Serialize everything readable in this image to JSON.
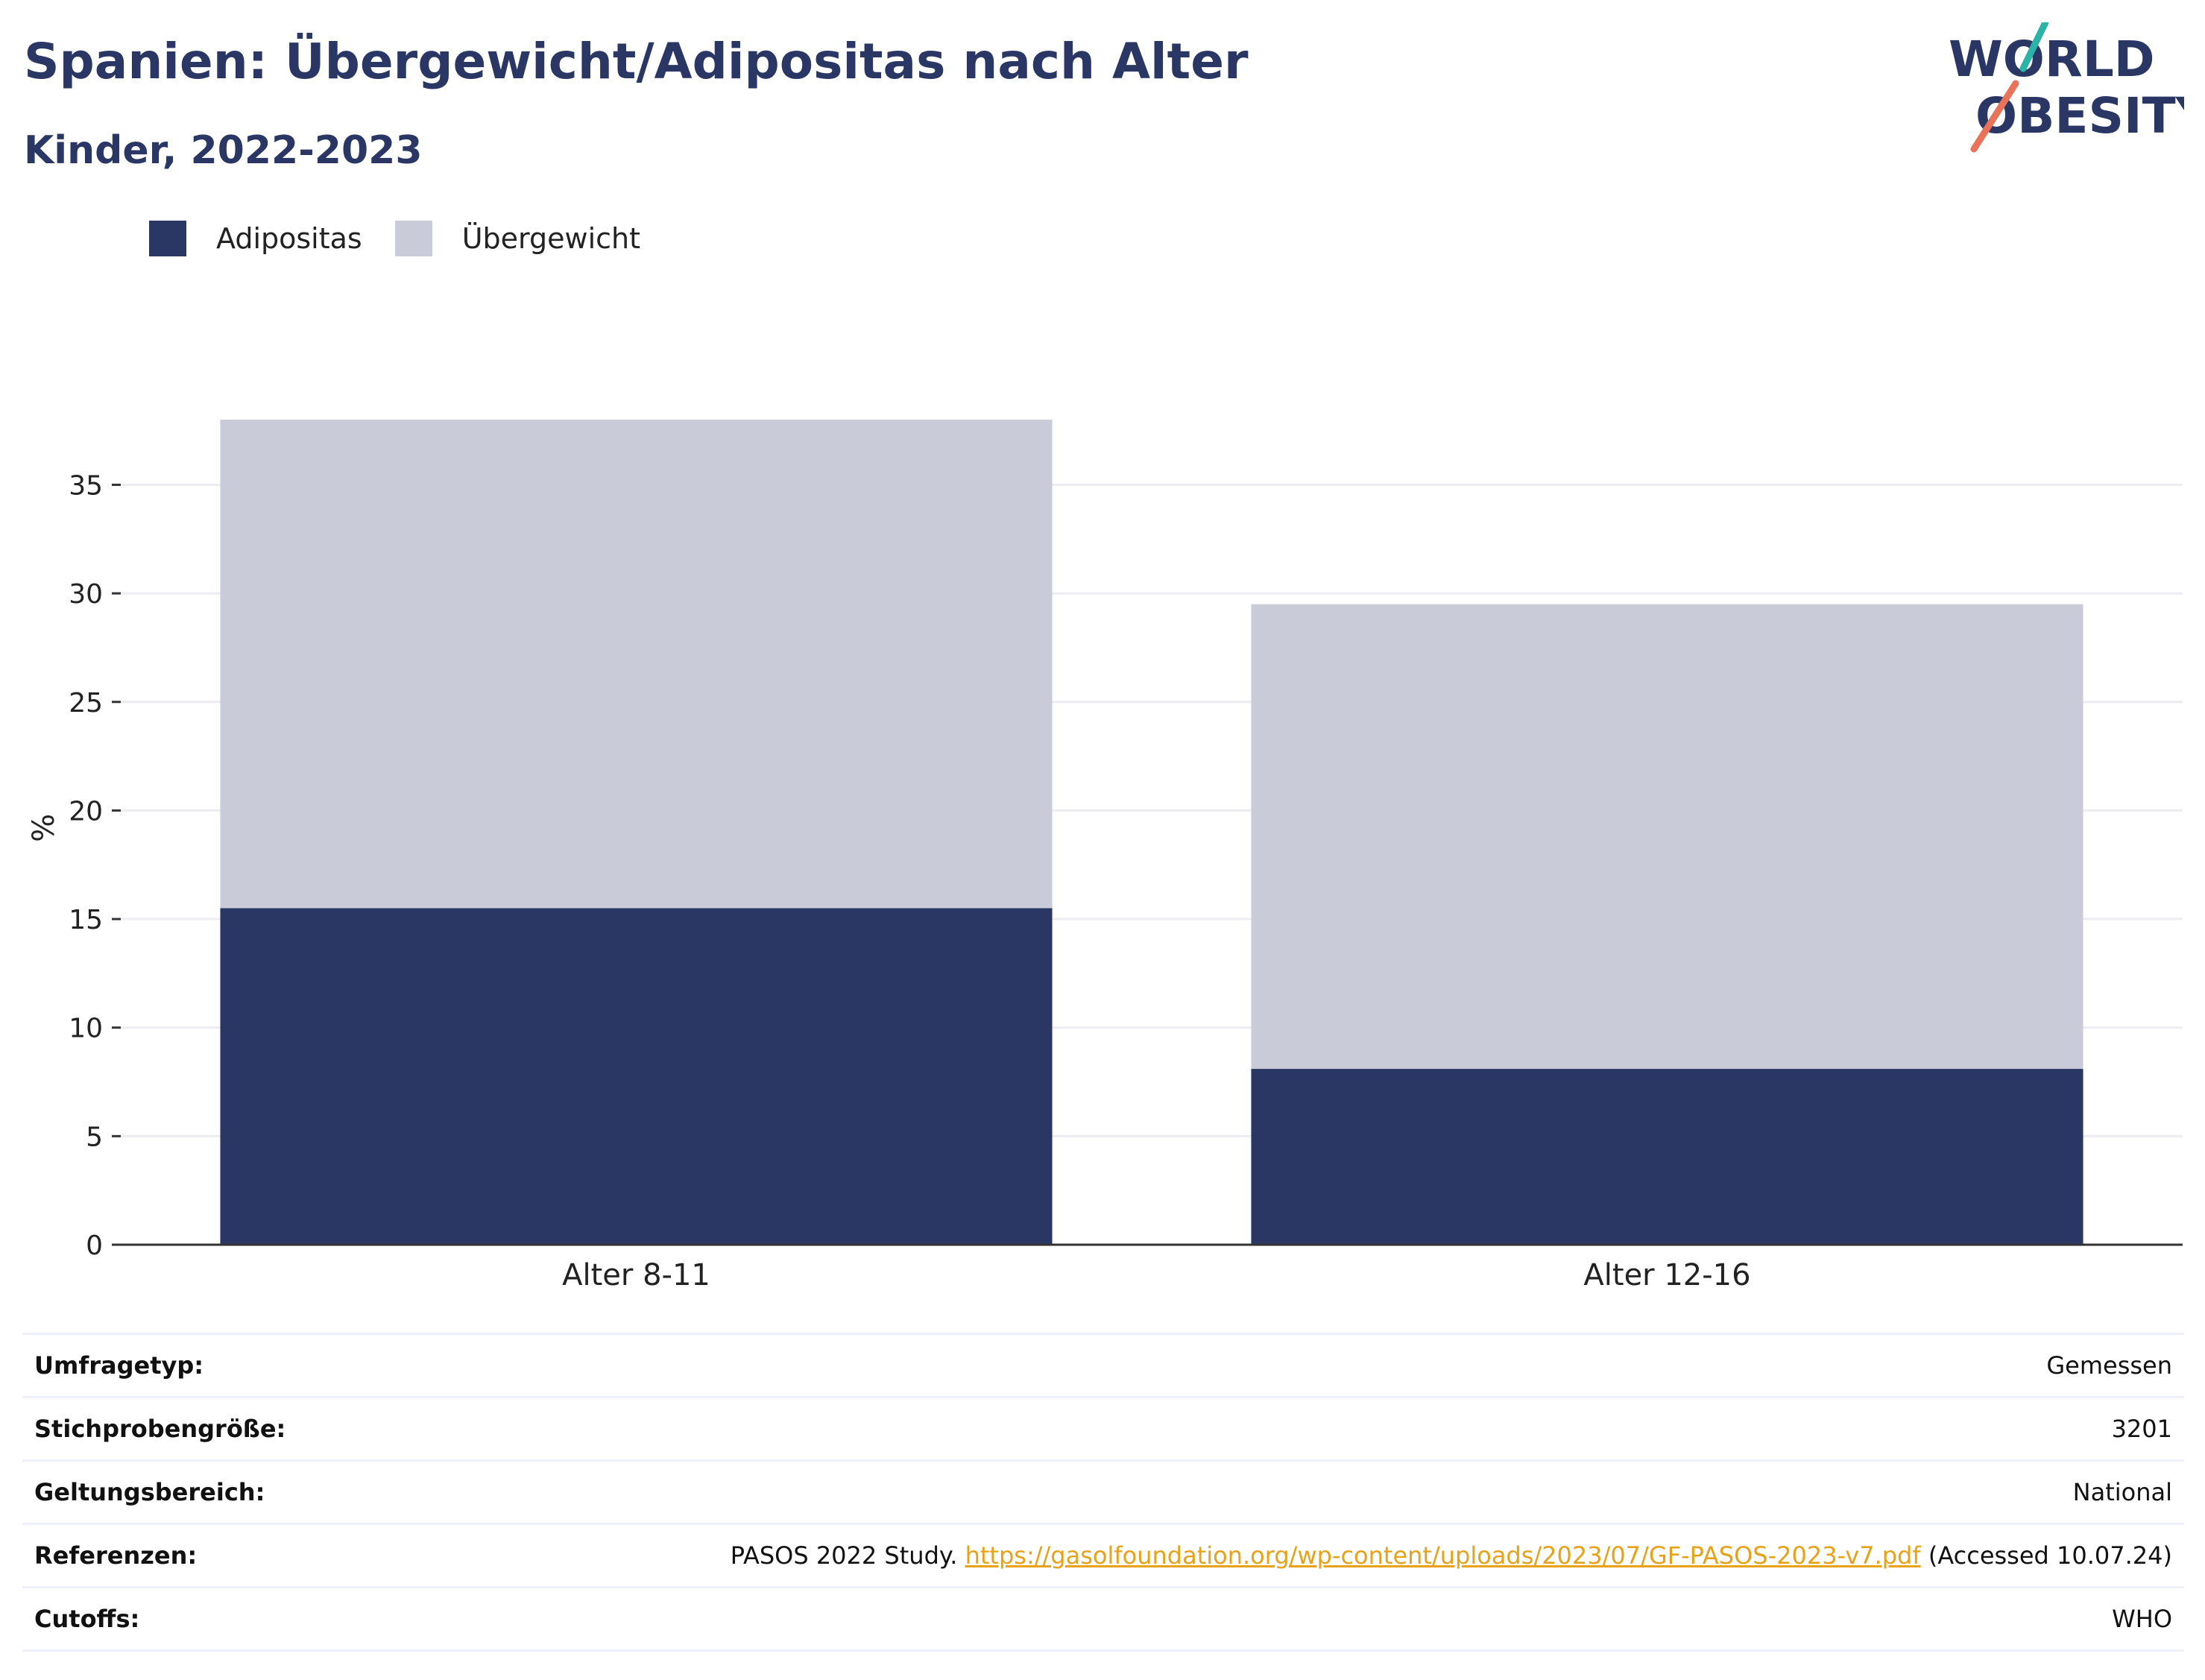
{
  "header": {
    "title": "Spanien: Übergewicht/Adipositas nach Alter",
    "subtitle": "Kinder, 2022-2023"
  },
  "logo": {
    "line1": "WORLD",
    "line2": "OBESITY",
    "colors": {
      "text": "#2a3764",
      "slash_top": "#2bb3a8",
      "slash_bottom": "#e8725a"
    }
  },
  "colors": {
    "adipositas": "#2a3764",
    "uebergewicht": "#c9ccd8",
    "grid": "#ececf2",
    "axis": "#333333",
    "link": "#e8a21a"
  },
  "chart_data": {
    "type": "bar",
    "stacked": true,
    "categories": [
      "Alter 8-11",
      "Alter 12-16"
    ],
    "series": [
      {
        "name": "Adipositas",
        "values": [
          15.5,
          8.1
        ]
      },
      {
        "name": "Übergewicht",
        "values": [
          22.5,
          21.4
        ]
      }
    ],
    "ylabel": "%",
    "xlabel": "",
    "ylim": [
      0,
      38
    ],
    "yticks": [
      0,
      5,
      10,
      15,
      20,
      25,
      30,
      35
    ],
    "grid": true,
    "legend_position": "top-left"
  },
  "info": {
    "rows": [
      {
        "label": "Umfragetyp:",
        "value": "Gemessen"
      },
      {
        "label": "Stichprobengröße:",
        "value": "3201"
      },
      {
        "label": "Geltungsbereich:",
        "value": "National"
      },
      {
        "label": "Referenzen:",
        "value_prefix": "PASOS 2022 Study. ",
        "link": "https://gasolfoundation.org/wp-content/uploads/2023/07/GF-PASOS-2023-v7.pdf",
        "value_suffix": " (Accessed 10.07.24)"
      },
      {
        "label": "Cutoffs:",
        "value": "WHO"
      }
    ]
  }
}
